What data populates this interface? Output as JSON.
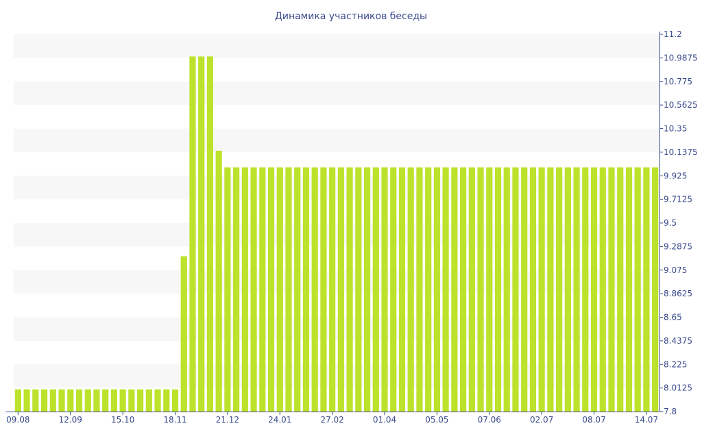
{
  "chart_data": {
    "type": "bar",
    "title": "Динамика участников беседы",
    "xlabel": "",
    "ylabel": "",
    "ylim": [
      7.8,
      11.2
    ],
    "y_axis_position": "right",
    "y_ticks": [
      "11.2",
      "10.9875",
      "10.775",
      "10.5625",
      "10.35",
      "10.1375",
      "9.925",
      "9.7125",
      "9.5",
      "9.2875",
      "9.075",
      "8.8625",
      "8.65",
      "8.4375",
      "8.225",
      "8.0125",
      "7.8"
    ],
    "x_tick_labels": [
      "09.08",
      "12.09",
      "15.10",
      "18.11",
      "21.12",
      "24.01",
      "27.02",
      "01.04",
      "05.05",
      "07.06",
      "02.07",
      "08.07",
      "14.07"
    ],
    "bar_color": "#bde22b",
    "stripe_color": "#f7f7f7",
    "values": [
      8,
      8,
      8,
      8,
      8,
      8,
      8,
      8,
      8,
      8,
      8,
      8,
      8,
      8,
      8,
      8,
      8,
      8,
      8,
      9.2,
      11,
      11,
      11,
      10.15,
      10,
      10,
      10,
      10,
      10,
      10,
      10,
      10,
      10,
      10,
      10,
      10,
      10,
      10,
      10,
      10,
      10,
      10,
      10,
      10,
      10,
      10,
      10,
      10,
      10,
      10,
      10,
      10,
      10,
      10,
      10,
      10,
      10,
      10,
      10,
      10,
      10,
      10,
      10,
      10,
      10,
      10,
      10,
      10,
      10,
      10,
      10,
      10,
      10,
      10
    ]
  }
}
